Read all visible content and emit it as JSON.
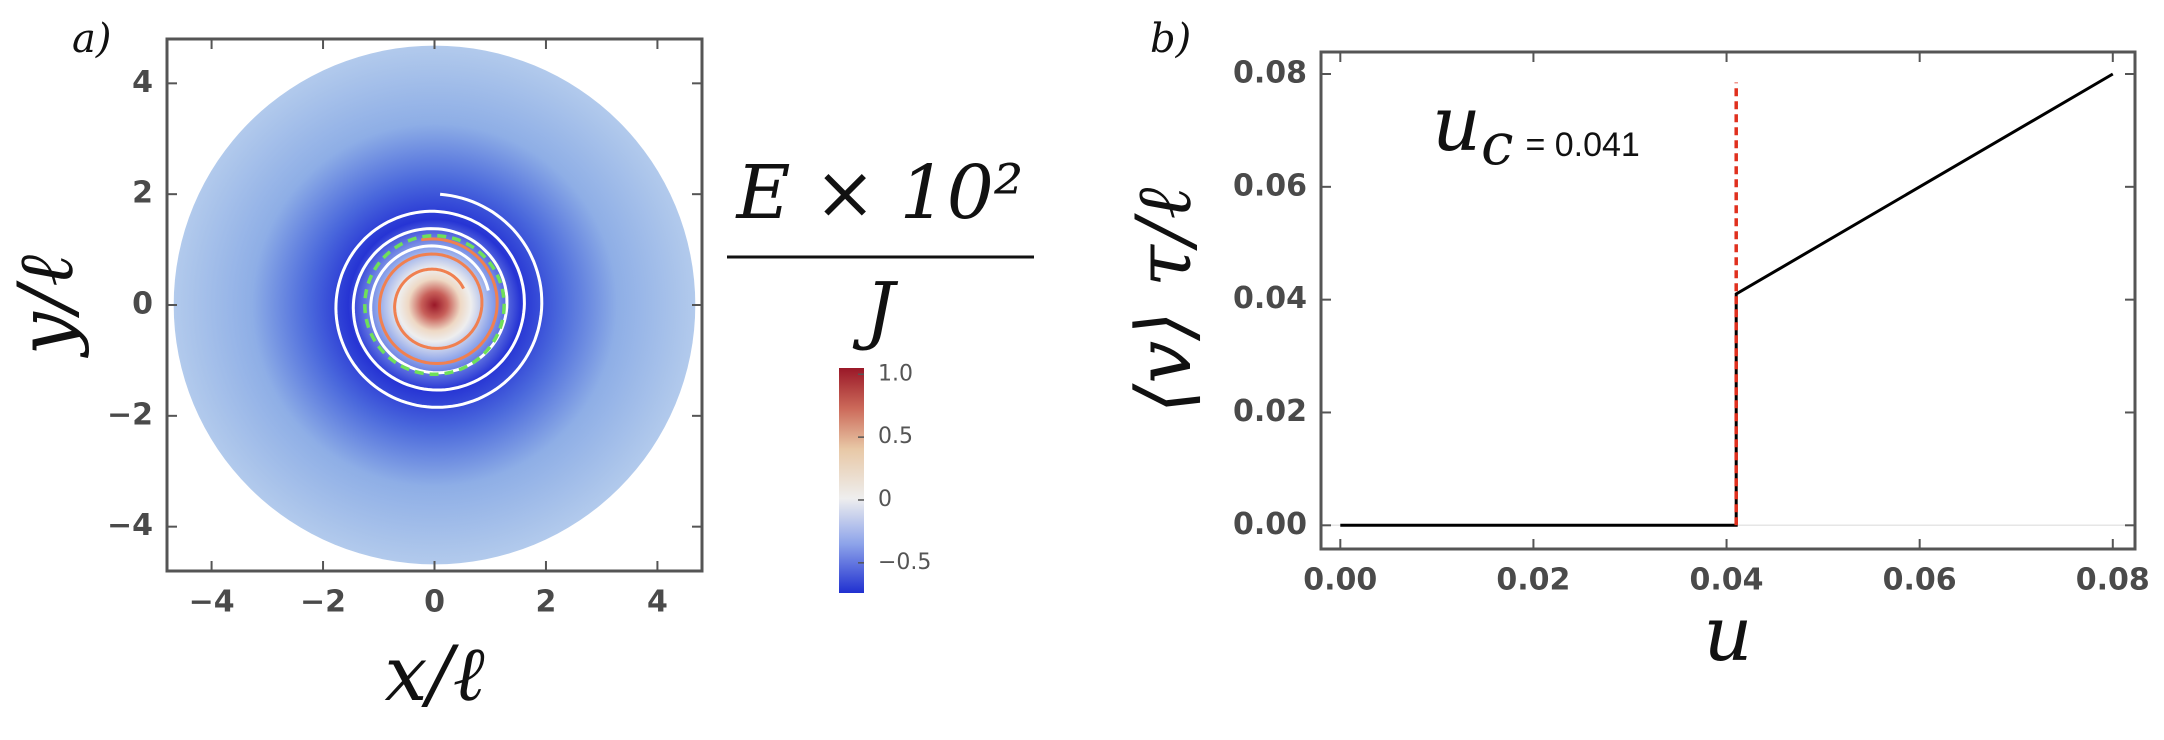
{
  "chart_data": [
    {
      "type": "heatmap",
      "panel": "a)",
      "xlabel": "x/ℓ",
      "ylabel": "y/ℓ",
      "xlim": [
        -4.8,
        4.8
      ],
      "ylim": [
        -4.8,
        4.8
      ],
      "xticks": [
        {
          "value": -4,
          "label": "−4"
        },
        {
          "value": -2,
          "label": "−2"
        },
        0,
        2,
        4
      ],
      "yticks": [
        {
          "value": -4,
          "label": "−4"
        },
        {
          "value": -2,
          "label": "−2"
        },
        0,
        2,
        4
      ],
      "colorbar_title": "E × 10²",
      "colorbar_denominator": "J",
      "clim": [
        -0.74,
        1.05
      ],
      "cticks": [
        {
          "value": 1,
          "label": "1.0"
        },
        0.5,
        0,
        {
          "value": -0.5,
          "label": "−0.5"
        }
      ]
    },
    {
      "type": "line",
      "panel": "b)",
      "xlabel": "u",
      "ylabel": "⟨v⟩ τ/ℓ",
      "xlim": [
        -0.002,
        0.0823
      ],
      "ylim": [
        -0.0042,
        0.0839
      ],
      "xticks": [
        {
          "value": 0,
          "label": "0.00"
        },
        {
          "value": 0.02,
          "label": "0.02"
        },
        {
          "value": 0.04,
          "label": "0.04"
        },
        {
          "value": 0.06,
          "label": "0.06"
        },
        {
          "value": 0.08,
          "label": "0.08"
        }
      ],
      "yticks": [
        {
          "value": 0,
          "label": "0.00"
        },
        {
          "value": 0.02,
          "label": "0.02"
        },
        {
          "value": 0.04,
          "label": "0.04"
        },
        {
          "value": 0.06,
          "label": "0.06"
        },
        {
          "value": 0.08,
          "label": "0.08"
        }
      ],
      "x": [
        0,
        0.041,
        0.041,
        0.08
      ],
      "series": [
        {
          "color": "#000000",
          "values": [
            0,
            0,
            0.041,
            0.08
          ]
        }
      ],
      "vline": {
        "x": 0.041,
        "y": [
          0,
          0.0785
        ],
        "color": "#e0301e"
      },
      "annotation": {
        "symbol": "u",
        "subscript": "c",
        "text": "= 0.041"
      }
    }
  ]
}
